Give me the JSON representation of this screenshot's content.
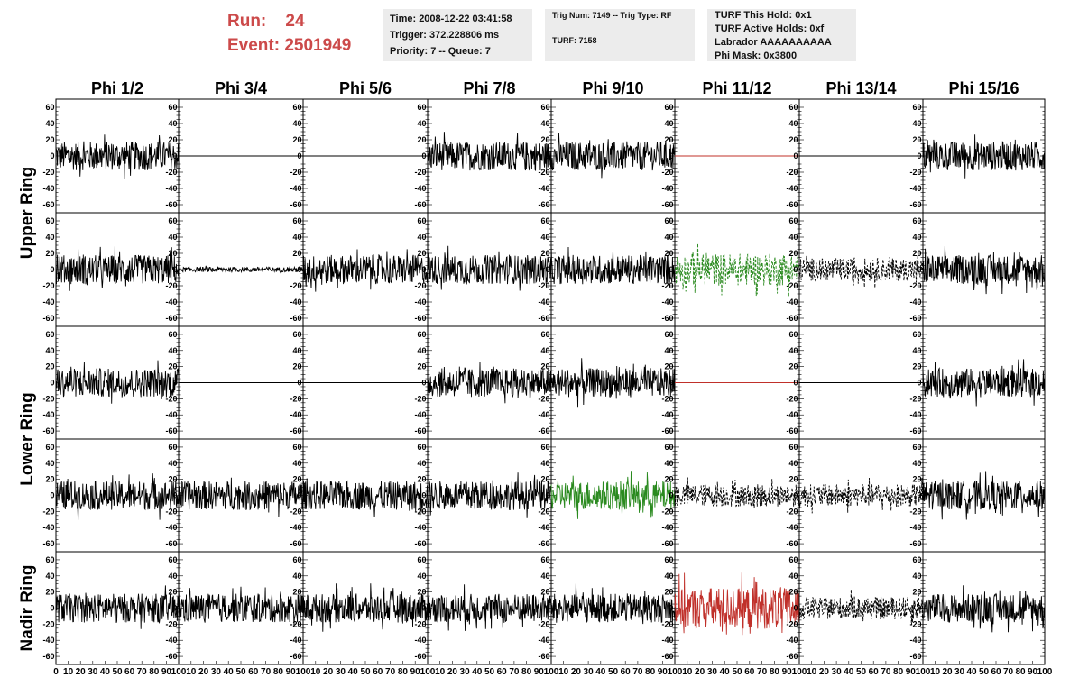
{
  "header": {
    "run_label": "Run:",
    "run_value": "24",
    "event_label": "Event:",
    "event_value": "2501949",
    "run_color": "#cc4a4a"
  },
  "info_boxes": {
    "time": "Time: 2008-12-22 03:41:58",
    "trigger": "Trigger: 372.228806 ms",
    "priority": "Priority: 7 -- Queue: 7",
    "trig_num": "Trig Num: 7149 -- Trig Type: RF",
    "turf": "TURF: 7158",
    "turf_this_hold": "TURF This Hold: 0x1",
    "turf_active_holds": "TURF Active Holds: 0xf",
    "labrador": "Labrador AAAAAAAAAA",
    "phi_mask": "Phi Mask: 0x3800"
  },
  "chart_data": {
    "type": "line",
    "columns": [
      "Phi 1/2",
      "Phi 3/4",
      "Phi 5/6",
      "Phi 7/8",
      "Phi 9/10",
      "Phi 11/12",
      "Phi 13/14",
      "Phi 15/16"
    ],
    "ring_labels": [
      "Upper Ring",
      "Lower Ring",
      "Nadir Ring"
    ],
    "xlim": [
      0,
      100
    ],
    "ylim": [
      -70,
      70
    ],
    "x_tick_labels": [
      "0",
      "10",
      "20",
      "30",
      "40",
      "50",
      "60",
      "70",
      "80",
      "90",
      "100"
    ],
    "y_tick_labels": [
      "60",
      "40",
      "20",
      "0",
      "-20",
      "-40",
      "-60"
    ],
    "colors": {
      "black": "#000000",
      "red": "#c0302a",
      "green": "#2a8a1f"
    },
    "panels": [
      [
        "noisy",
        "flat",
        "flat",
        "noisy",
        "noisy",
        "flat-red",
        "flat",
        "noisy"
      ],
      [
        "noisy",
        "low",
        "noisy",
        "noisy",
        "noisy",
        "dashed-green",
        "dashed",
        "noisy"
      ],
      [
        "noisy",
        "flat",
        "flat",
        "noisy",
        "noisy",
        "flat-red",
        "flat",
        "noisy"
      ],
      [
        "noisy",
        "noisy",
        "noisy",
        "noisy",
        "green",
        "dashed",
        "dashed",
        "noisy"
      ],
      [
        "noisy",
        "noisy",
        "noisy",
        "noisy",
        "noisy",
        "red",
        "dashed",
        "noisy"
      ]
    ]
  }
}
